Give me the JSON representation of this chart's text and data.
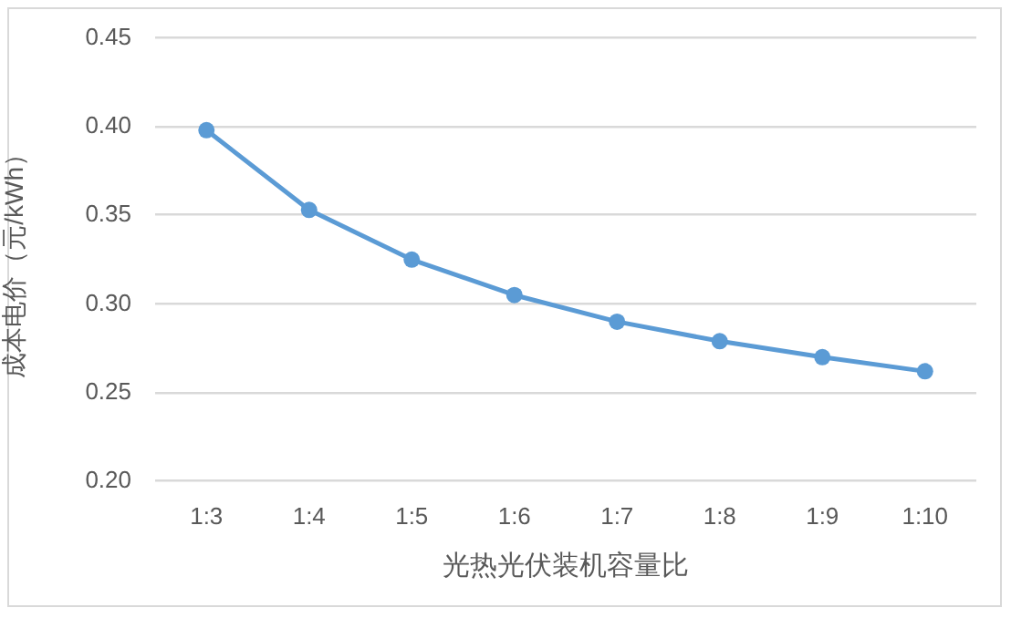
{
  "chart_data": {
    "type": "line",
    "xlabel": "光热光伏装机容量比",
    "ylabel": "成本电价（元/kWh）",
    "categories": [
      "1:3",
      "1:4",
      "1:5",
      "1:6",
      "1:7",
      "1:8",
      "1:9",
      "1:10"
    ],
    "values": [
      0.398,
      0.353,
      0.325,
      0.305,
      0.29,
      0.279,
      0.27,
      0.262
    ],
    "color": "#5b9bd5",
    "ylim": [
      0.2,
      0.45
    ],
    "yticks": [
      {
        "value": 0.2,
        "label": "0.20"
      },
      0.25,
      {
        "value": 0.3,
        "label": "0.30"
      },
      0.35,
      {
        "value": 0.4,
        "label": "0.40"
      },
      0.45
    ],
    "grid": "y",
    "marker": "circle",
    "line_style": "solid"
  }
}
